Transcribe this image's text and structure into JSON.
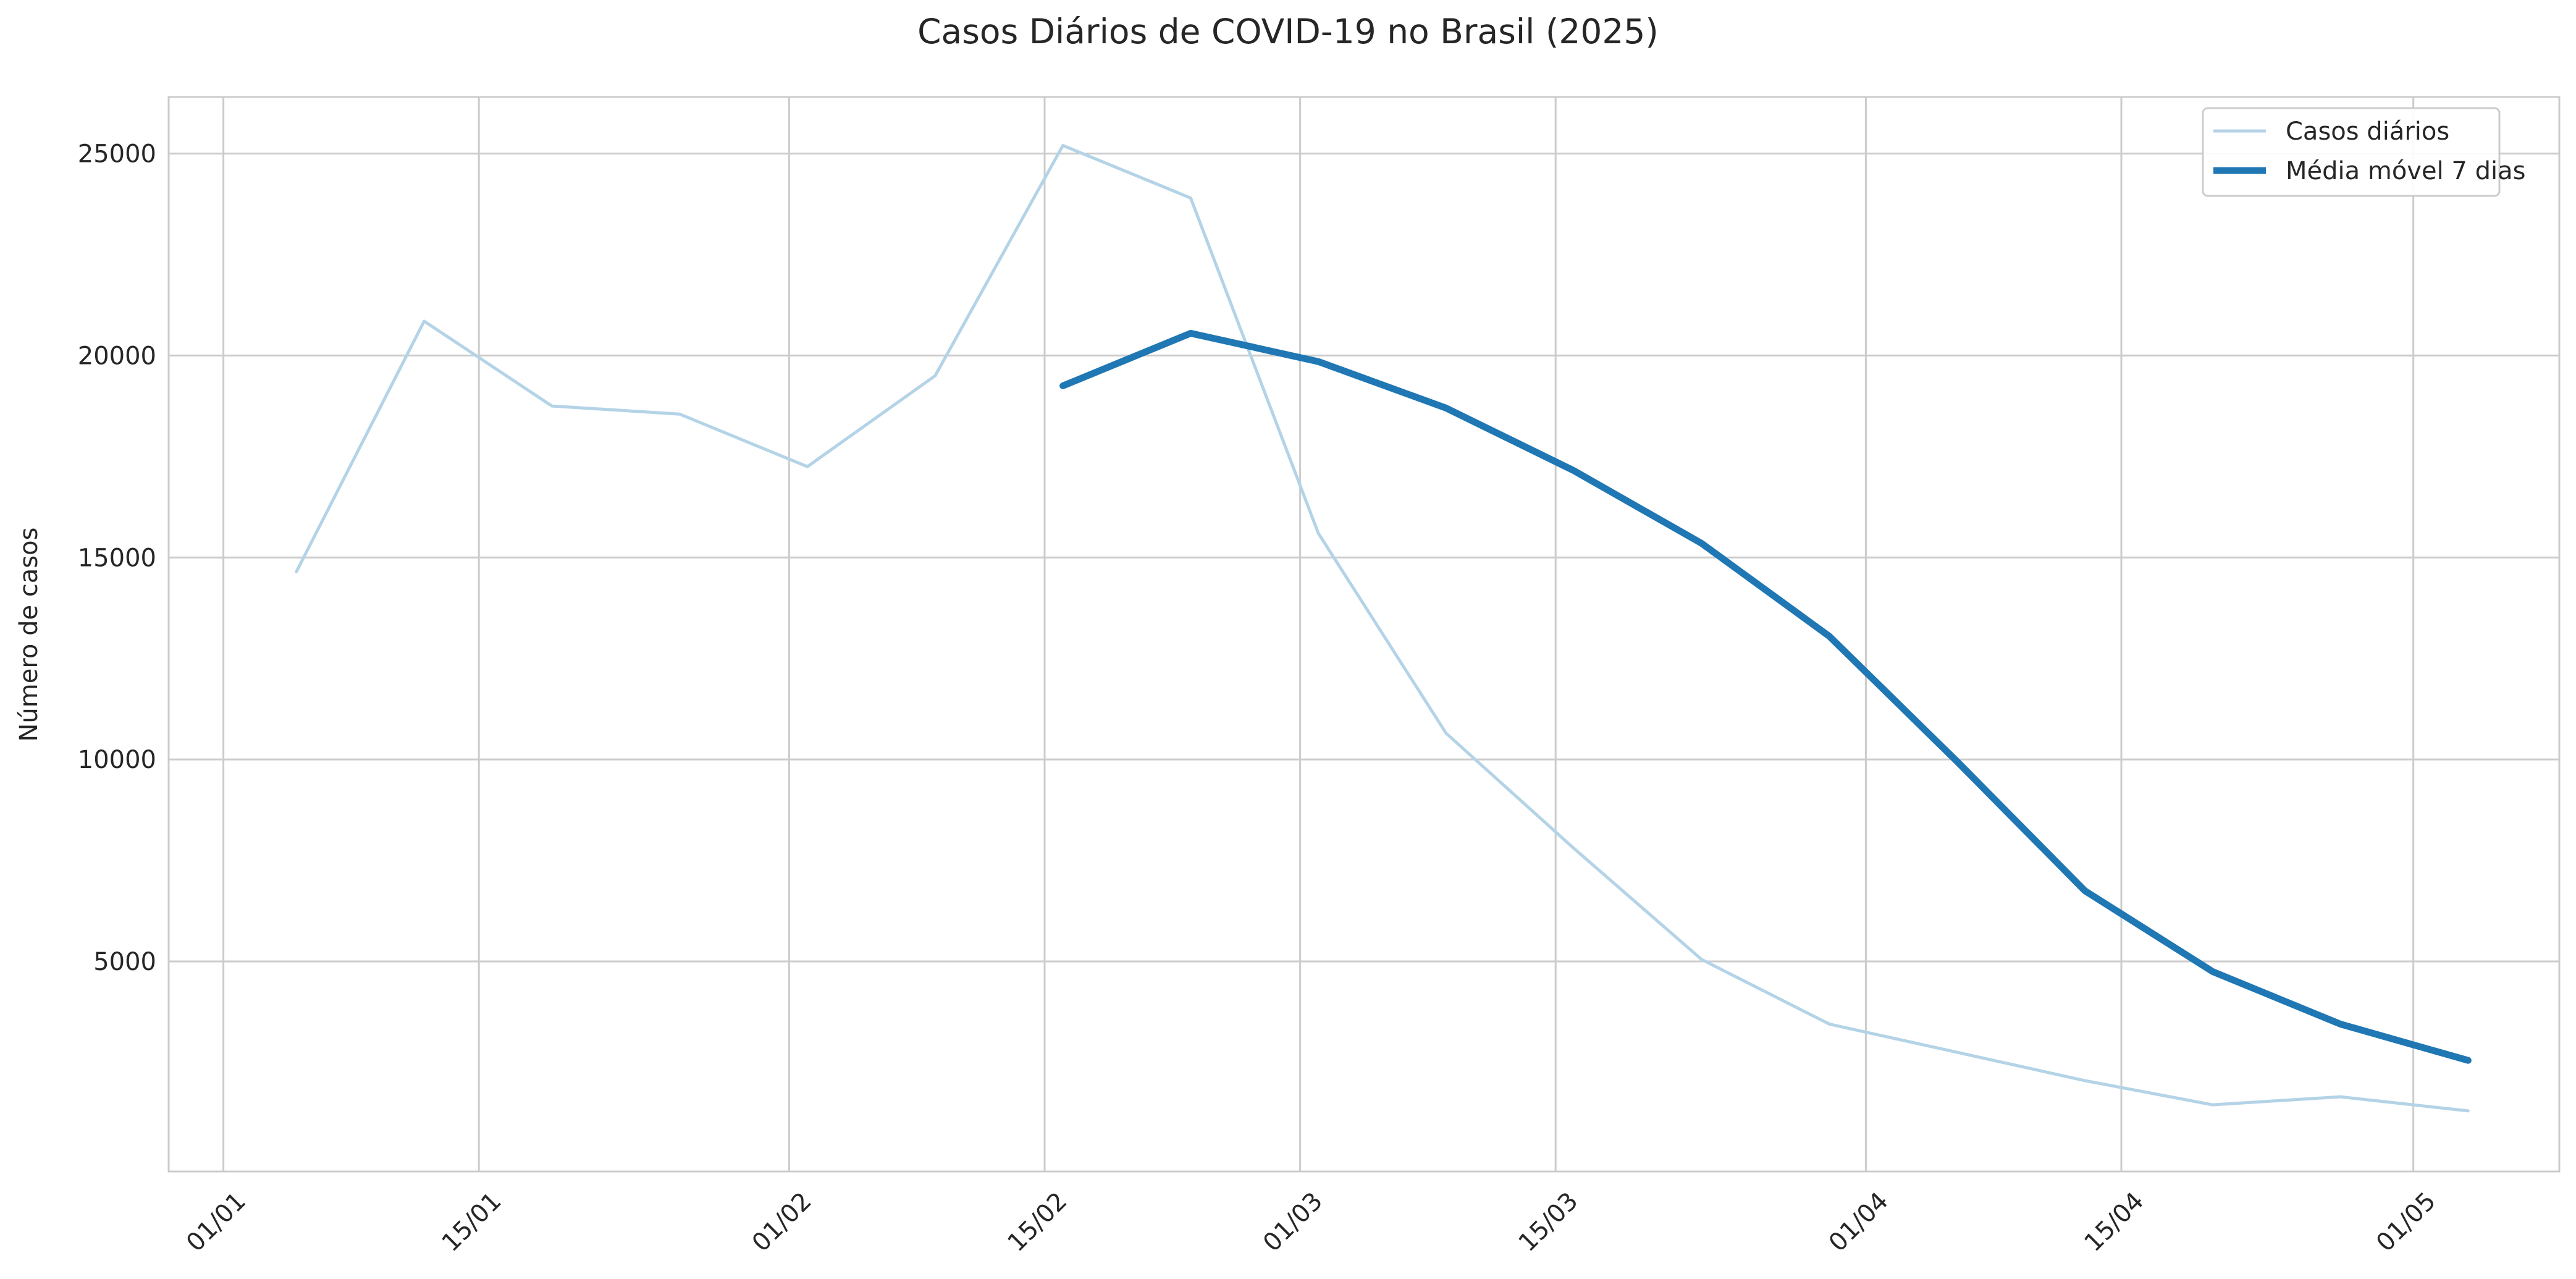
{
  "chart_data": {
    "type": "line",
    "title": "Casos Diários de COVID-19 no Brasil (2025)",
    "xlabel": "",
    "ylabel": "Número de casos",
    "ylim": [
      -200,
      26400
    ],
    "xlim": [
      "2024-12-29",
      "2025-05-09"
    ],
    "y_ticks": [
      5000,
      10000,
      15000,
      20000,
      25000
    ],
    "x_ticks": [
      {
        "date": "2025-01-01",
        "label": "01/01"
      },
      {
        "date": "2025-01-15",
        "label": "15/01"
      },
      {
        "date": "2025-02-01",
        "label": "01/02"
      },
      {
        "date": "2025-02-15",
        "label": "15/02"
      },
      {
        "date": "2025-03-01",
        "label": "01/03"
      },
      {
        "date": "2025-03-15",
        "label": "15/03"
      },
      {
        "date": "2025-04-01",
        "label": "01/04"
      },
      {
        "date": "2025-04-15",
        "label": "15/04"
      },
      {
        "date": "2025-05-01",
        "label": "01/05"
      }
    ],
    "grid": true,
    "legend_position": "top-right",
    "series": [
      {
        "name": "Casos diários",
        "color": "#b4d3e7",
        "points": [
          {
            "x": "2025-01-05",
            "y": 14650
          },
          {
            "x": "2025-01-12",
            "y": 20850
          },
          {
            "x": "2025-01-19",
            "y": 18750
          },
          {
            "x": "2025-01-26",
            "y": 18550
          },
          {
            "x": "2025-02-02",
            "y": 17250
          },
          {
            "x": "2025-02-09",
            "y": 19500
          },
          {
            "x": "2025-02-16",
            "y": 25200
          },
          {
            "x": "2025-02-23",
            "y": 23900
          },
          {
            "x": "2025-03-02",
            "y": 15600
          },
          {
            "x": "2025-03-09",
            "y": 10650
          },
          {
            "x": "2025-03-16",
            "y": 7800
          },
          {
            "x": "2025-03-23",
            "y": 5050
          },
          {
            "x": "2025-03-30",
            "y": 3450
          },
          {
            "x": "2025-04-06",
            "y": 2750
          },
          {
            "x": "2025-04-13",
            "y": 2050
          },
          {
            "x": "2025-04-20",
            "y": 1450
          },
          {
            "x": "2025-04-27",
            "y": 1650
          },
          {
            "x": "2025-05-04",
            "y": 1300
          }
        ]
      },
      {
        "name": "Média móvel 7 dias",
        "color": "#1f77b4",
        "points": [
          {
            "x": "2025-02-16",
            "y": 19250
          },
          {
            "x": "2025-02-23",
            "y": 20550
          },
          {
            "x": "2025-03-02",
            "y": 19850
          },
          {
            "x": "2025-03-09",
            "y": 18700
          },
          {
            "x": "2025-03-16",
            "y": 17150
          },
          {
            "x": "2025-03-23",
            "y": 15350
          },
          {
            "x": "2025-03-30",
            "y": 13050
          },
          {
            "x": "2025-04-06",
            "y": 9950
          },
          {
            "x": "2025-04-13",
            "y": 6750
          },
          {
            "x": "2025-04-20",
            "y": 4750
          },
          {
            "x": "2025-04-27",
            "y": 3450
          },
          {
            "x": "2025-05-04",
            "y": 2550
          }
        ]
      }
    ]
  }
}
